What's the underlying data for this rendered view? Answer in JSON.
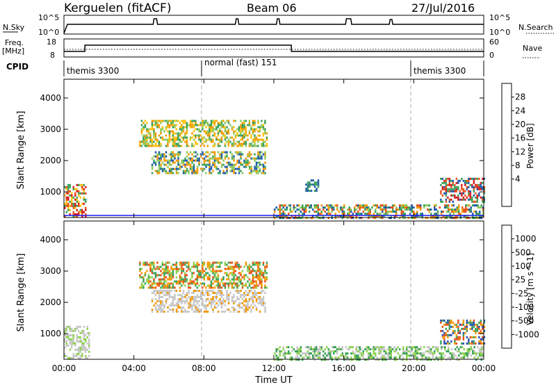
{
  "header": {
    "station": "Kerguelen (fitACF)",
    "beam": "Beam 06",
    "date": "27/Jul/2016"
  },
  "summary_panels": {
    "nsky": {
      "label": "N.Sky",
      "left_ticks": [
        "10^5",
        "10^0"
      ],
      "right_ticks": [
        "10^5",
        "10^0"
      ],
      "right_label": "N.Search"
    },
    "freq": {
      "label_line1": "Freq.",
      "label_line2": "[MHz]",
      "left_ticks": [
        "18",
        "8"
      ],
      "right_ticks": [
        "60",
        "0"
      ],
      "right_label": "Nave"
    },
    "cpid": {
      "label": "CPID",
      "segments": [
        {
          "start_hour": 0,
          "end_hour": 8,
          "name": "themis 3300"
        },
        {
          "start_hour": 8,
          "end_hour": 20,
          "name": "normal (fast) 151"
        },
        {
          "start_hour": 20,
          "end_hour": 24,
          "name": "themis 3300"
        }
      ]
    }
  },
  "chart_data": [
    {
      "type": "heatmap",
      "panel": "power",
      "ylabel": "Slant Range [km]",
      "yticks": [
        1000,
        2000,
        3000,
        4000
      ],
      "ylim": [
        180,
        4600
      ],
      "xlim": [
        0,
        24
      ],
      "colorbar": {
        "label": "Power [dB]",
        "ticks": [
          "28",
          "24",
          "20",
          "16",
          "12",
          "8",
          "4"
        ],
        "colors": [
          "#d7191c",
          "#e8501a",
          "#f39800",
          "#ffc20e",
          "#8fc85a",
          "#3aa15a",
          "#2f7f8e",
          "#1e5aa8",
          "#1a1aff"
        ]
      },
      "echo_regions": [
        {
          "x0": 0.0,
          "x1": 1.2,
          "y0": 200,
          "y1": 1250,
          "colors": [
            "#d7191c",
            "#e8501a",
            "#3aa15a",
            "#ffc20e"
          ]
        },
        {
          "x0": 4.3,
          "x1": 11.6,
          "y0": 2500,
          "y1": 3300,
          "colors": [
            "#3aa15a",
            "#8fc85a",
            "#ffc20e",
            "#f39800"
          ]
        },
        {
          "x0": 5.0,
          "x1": 11.5,
          "y0": 1600,
          "y1": 2300,
          "colors": [
            "#3aa15a",
            "#1e5aa8",
            "#8fc85a",
            "#f39800"
          ]
        },
        {
          "x0": 13.8,
          "x1": 14.5,
          "y0": 1050,
          "y1": 1400,
          "colors": [
            "#1e5aa8",
            "#3aa15a"
          ]
        },
        {
          "x0": 12.0,
          "x1": 24.0,
          "y0": 200,
          "y1": 600,
          "colors": [
            "#1e5aa8",
            "#3aa15a",
            "#8fc85a",
            "#f39800",
            "#e8501a"
          ]
        },
        {
          "x0": 21.5,
          "x1": 24.0,
          "y0": 700,
          "y1": 1450,
          "colors": [
            "#1e5aa8",
            "#3aa15a",
            "#e8501a",
            "#d7191c"
          ]
        }
      ]
    },
    {
      "type": "heatmap",
      "panel": "velocity",
      "xlabel": "Time UT",
      "ylabel": "Slant Range [km]",
      "xticks": [
        "00:00",
        "04:00",
        "08:00",
        "12:00",
        "16:00",
        "20:00",
        "00:00"
      ],
      "yticks": [
        1000,
        2000,
        3000,
        4000
      ],
      "ylim": [
        180,
        4600
      ],
      "xlim": [
        0,
        24
      ],
      "colorbar": {
        "label": "Velocity [m s^-1]",
        "ticks": [
          "1000",
          "500",
          "100",
          "25",
          "-25",
          "-100",
          "-500",
          "-1000"
        ],
        "colors": [
          "#2a4fb0",
          "#2f7f8e",
          "#3aa15a",
          "#8fd14f",
          "#c8c8c8",
          "#ffc20e",
          "#f39800",
          "#e8501a",
          "#d7191c"
        ]
      },
      "echo_regions": [
        {
          "x0": 0.0,
          "x1": 1.4,
          "y0": 200,
          "y1": 1250,
          "colors": [
            "#c8c8c8",
            "#c8c8c8",
            "#8fd14f"
          ]
        },
        {
          "x0": 4.3,
          "x1": 11.6,
          "y0": 2500,
          "y1": 3300,
          "colors": [
            "#f39800",
            "#e8501a",
            "#8fd14f",
            "#3aa15a"
          ]
        },
        {
          "x0": 5.0,
          "x1": 11.5,
          "y0": 1700,
          "y1": 2400,
          "colors": [
            "#c8c8c8",
            "#c8c8c8",
            "#c8c8c8",
            "#f39800"
          ]
        },
        {
          "x0": 12.0,
          "x1": 24.0,
          "y0": 200,
          "y1": 600,
          "colors": [
            "#8fd14f",
            "#3aa15a",
            "#c8c8c8"
          ]
        },
        {
          "x0": 21.5,
          "x1": 24.0,
          "y0": 700,
          "y1": 1450,
          "colors": [
            "#2a4fb0",
            "#3aa15a",
            "#e8501a",
            "#f39800"
          ]
        }
      ]
    }
  ]
}
